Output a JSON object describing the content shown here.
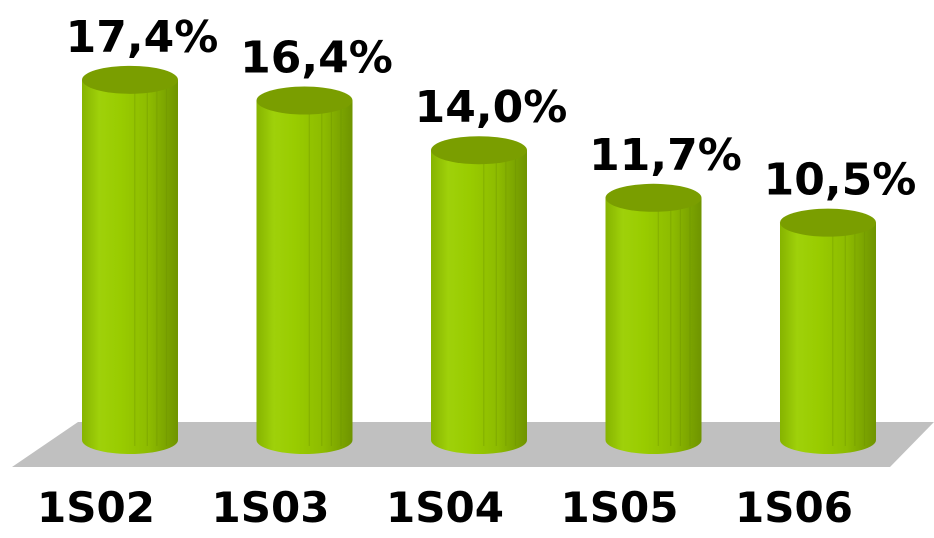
{
  "chart_data": {
    "type": "bar",
    "style": "3d-cylinder",
    "categories": [
      "1S02",
      "1S03",
      "1S04",
      "1S05",
      "1S06"
    ],
    "values": [
      17.4,
      16.4,
      14.0,
      11.7,
      10.5
    ],
    "data_labels": [
      "17,4%",
      "16,4%",
      "14,0%",
      "11,7%",
      "10,5%"
    ],
    "title": "",
    "xlabel": "",
    "ylabel": "",
    "ylim": [
      0,
      20
    ],
    "grid": false,
    "legend": "none",
    "colors": {
      "bar": "#99cc00",
      "bar_dark": "#6a8f00",
      "bar_light": "#b8e62e",
      "bar_top": "#7a9e00",
      "floor": "#c0c0c0"
    }
  }
}
